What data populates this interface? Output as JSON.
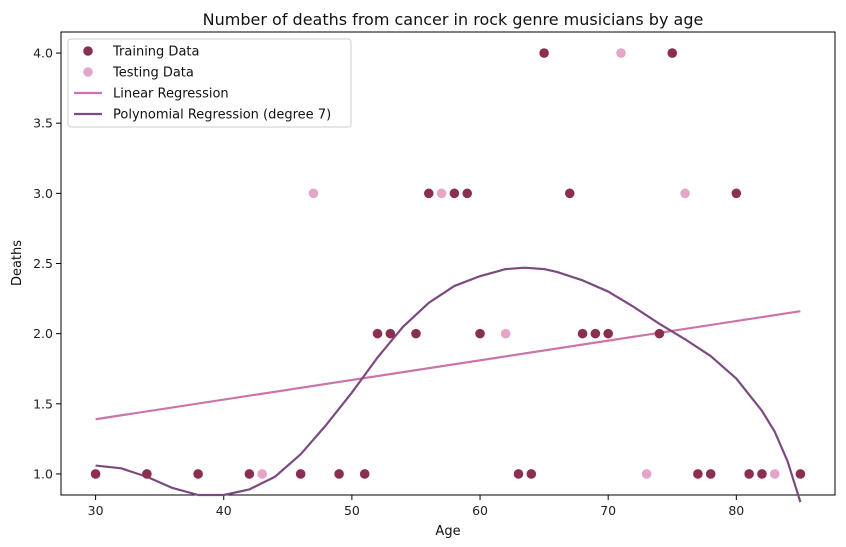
{
  "chart_data": {
    "type": "scatter",
    "title": "Number of deaths from cancer in rock genre musicians by age",
    "xlabel": "Age",
    "ylabel": "Deaths",
    "xlim": [
      27.3,
      87.7
    ],
    "ylim": [
      0.85,
      4.15
    ],
    "xticks": [
      30,
      40,
      50,
      60,
      70,
      80
    ],
    "yticks": [
      1.0,
      1.5,
      2.0,
      2.5,
      3.0,
      3.5,
      4.0
    ],
    "xtick_labels": [
      "30",
      "40",
      "50",
      "60",
      "70",
      "80"
    ],
    "ytick_labels": [
      "1.0",
      "1.5",
      "2.0",
      "2.5",
      "3.0",
      "3.5",
      "4.0"
    ],
    "grid": false,
    "legend_position": "top-left",
    "series": [
      {
        "name": "Training Data",
        "kind": "scatter",
        "color": "#8b2f52",
        "points": [
          [
            30,
            1
          ],
          [
            34,
            1
          ],
          [
            38,
            1
          ],
          [
            42,
            1
          ],
          [
            46,
            1
          ],
          [
            49,
            1
          ],
          [
            51,
            1
          ],
          [
            52,
            2
          ],
          [
            53,
            2
          ],
          [
            55,
            2
          ],
          [
            56,
            3
          ],
          [
            58,
            3
          ],
          [
            59,
            3
          ],
          [
            60,
            2
          ],
          [
            63,
            1
          ],
          [
            64,
            1
          ],
          [
            65,
            4
          ],
          [
            67,
            3
          ],
          [
            68,
            2
          ],
          [
            69,
            2
          ],
          [
            70,
            2
          ],
          [
            74,
            2
          ],
          [
            75,
            4
          ],
          [
            77,
            1
          ],
          [
            78,
            1
          ],
          [
            80,
            3
          ],
          [
            81,
            1
          ],
          [
            82,
            1
          ],
          [
            85,
            1
          ]
        ]
      },
      {
        "name": "Testing Data",
        "kind": "scatter",
        "color": "#e4a5c9",
        "points": [
          [
            43,
            1
          ],
          [
            47,
            3
          ],
          [
            57,
            3
          ],
          [
            62,
            2
          ],
          [
            71,
            4
          ],
          [
            73,
            1
          ],
          [
            76,
            3
          ],
          [
            83,
            1
          ]
        ]
      },
      {
        "name": "Linear Regression",
        "kind": "line",
        "color": "#cc73a8",
        "points": [
          [
            30,
            1.39
          ],
          [
            85,
            2.16
          ]
        ]
      },
      {
        "name": "Polynomial Regression (degree 7)",
        "kind": "line",
        "color": "#7b4a80",
        "points": [
          [
            30,
            1.06
          ],
          [
            32,
            1.04
          ],
          [
            34,
            0.98
          ],
          [
            36,
            0.9
          ],
          [
            38,
            0.85
          ],
          [
            40,
            0.85
          ],
          [
            42,
            0.89
          ],
          [
            44,
            0.98
          ],
          [
            46,
            1.14
          ],
          [
            48,
            1.35
          ],
          [
            50,
            1.58
          ],
          [
            52,
            1.83
          ],
          [
            54,
            2.05
          ],
          [
            56,
            2.22
          ],
          [
            58,
            2.34
          ],
          [
            60,
            2.41
          ],
          [
            62,
            2.46
          ],
          [
            63.5,
            2.47
          ],
          [
            65,
            2.46
          ],
          [
            66,
            2.44
          ],
          [
            68,
            2.38
          ],
          [
            70,
            2.3
          ],
          [
            72,
            2.19
          ],
          [
            74,
            2.07
          ],
          [
            76,
            1.96
          ],
          [
            78,
            1.84
          ],
          [
            80,
            1.68
          ],
          [
            82,
            1.45
          ],
          [
            83,
            1.3
          ],
          [
            84,
            1.09
          ],
          [
            85,
            0.8
          ]
        ]
      }
    ]
  }
}
